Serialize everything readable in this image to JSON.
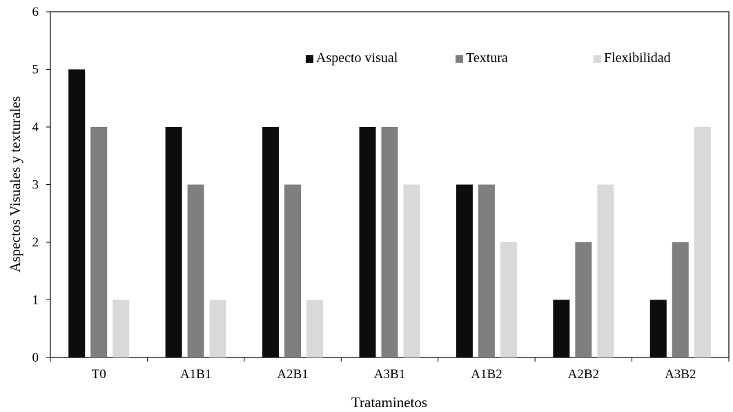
{
  "chart_data": {
    "type": "bar",
    "title": "",
    "xlabel": "Trataminetos",
    "ylabel": "Aspectos Visuales y texturales",
    "categories": [
      "T0",
      "A1B1",
      "A2B1",
      "A3B1",
      "A1B2",
      "A2B2",
      "A3B2"
    ],
    "series": [
      {
        "name": "Aspecto visual",
        "color": "#0d0d0d",
        "values": [
          5,
          4,
          4,
          4,
          3,
          1,
          1
        ]
      },
      {
        "name": "Textura",
        "color": "#7f7f7f",
        "values": [
          4,
          3,
          3,
          4,
          3,
          2,
          2
        ]
      },
      {
        "name": "Flexibilidad",
        "color": "#d9d9d9",
        "values": [
          1,
          1,
          1,
          3,
          2,
          3,
          4
        ]
      }
    ],
    "ylim": [
      0,
      6
    ],
    "yticks": [
      "0",
      "1",
      "2",
      "3",
      "4",
      "5",
      "6"
    ],
    "grid": false,
    "legend_position": "top-right"
  }
}
